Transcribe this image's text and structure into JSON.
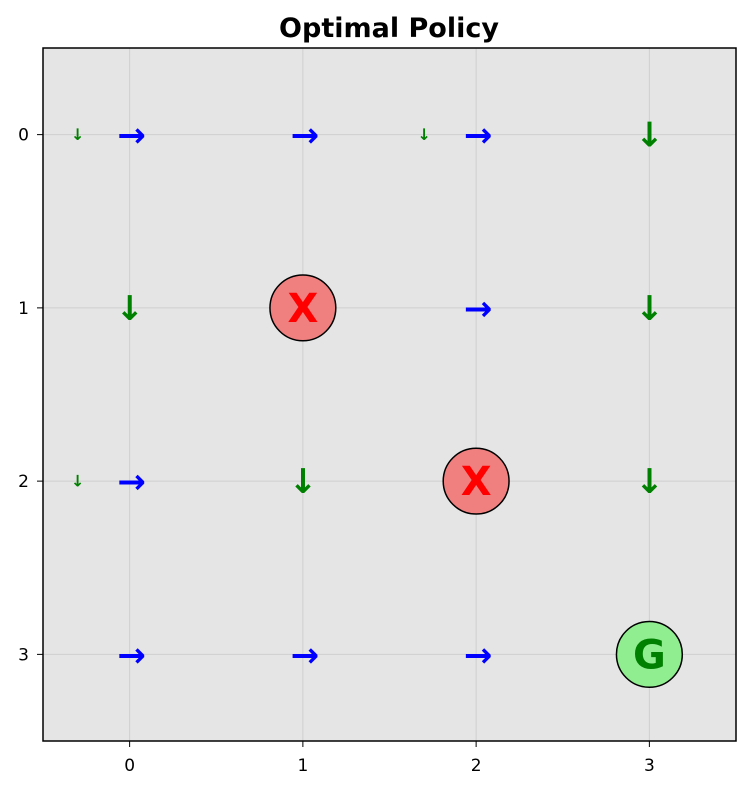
{
  "chart_data": {
    "type": "grid-policy",
    "title": "Optimal Policy",
    "x_ticks": [
      "0",
      "1",
      "2",
      "3"
    ],
    "y_ticks": [
      "0",
      "1",
      "2",
      "3"
    ],
    "xlim": [
      -0.5,
      3.5
    ],
    "ylim": [
      3.5,
      -0.5
    ],
    "grid": true,
    "colors": {
      "plot_background": "#e5e5e5",
      "grid": "#cfcfcf",
      "right_arrow": "#0000ff",
      "down_arrow": "#008000",
      "obstacle_fill": "#f08080",
      "obstacle_text": "#ff0000",
      "goal_fill": "#90ee90",
      "goal_text": "#008000"
    },
    "arrows": [
      {
        "row": 0,
        "col": 0,
        "dir": "right",
        "size": "large"
      },
      {
        "row": 0,
        "col": 1,
        "dir": "right",
        "size": "large"
      },
      {
        "row": 0,
        "col": 2,
        "dir": "right",
        "size": "large"
      },
      {
        "row": 0,
        "col": 3,
        "dir": "down",
        "size": "large"
      },
      {
        "row": 0,
        "col": 0,
        "dir": "down",
        "size": "small",
        "offset": -0.3
      },
      {
        "row": 0,
        "col": 2,
        "dir": "down",
        "size": "small",
        "offset": -0.3
      },
      {
        "row": 1,
        "col": 0,
        "dir": "down",
        "size": "large"
      },
      {
        "row": 1,
        "col": 2,
        "dir": "right",
        "size": "large"
      },
      {
        "row": 1,
        "col": 3,
        "dir": "down",
        "size": "large"
      },
      {
        "row": 2,
        "col": 0,
        "dir": "right",
        "size": "large"
      },
      {
        "row": 2,
        "col": 0,
        "dir": "down",
        "size": "small",
        "offset": -0.3
      },
      {
        "row": 2,
        "col": 1,
        "dir": "down",
        "size": "large"
      },
      {
        "row": 2,
        "col": 3,
        "dir": "down",
        "size": "large"
      },
      {
        "row": 3,
        "col": 0,
        "dir": "right",
        "size": "large"
      },
      {
        "row": 3,
        "col": 1,
        "dir": "right",
        "size": "large"
      },
      {
        "row": 3,
        "col": 2,
        "dir": "right",
        "size": "large"
      }
    ],
    "markers": [
      {
        "row": 1,
        "col": 1,
        "label": "X",
        "kind": "obstacle"
      },
      {
        "row": 2,
        "col": 2,
        "label": "X",
        "kind": "obstacle"
      },
      {
        "row": 3,
        "col": 3,
        "label": "G",
        "kind": "goal"
      }
    ]
  }
}
